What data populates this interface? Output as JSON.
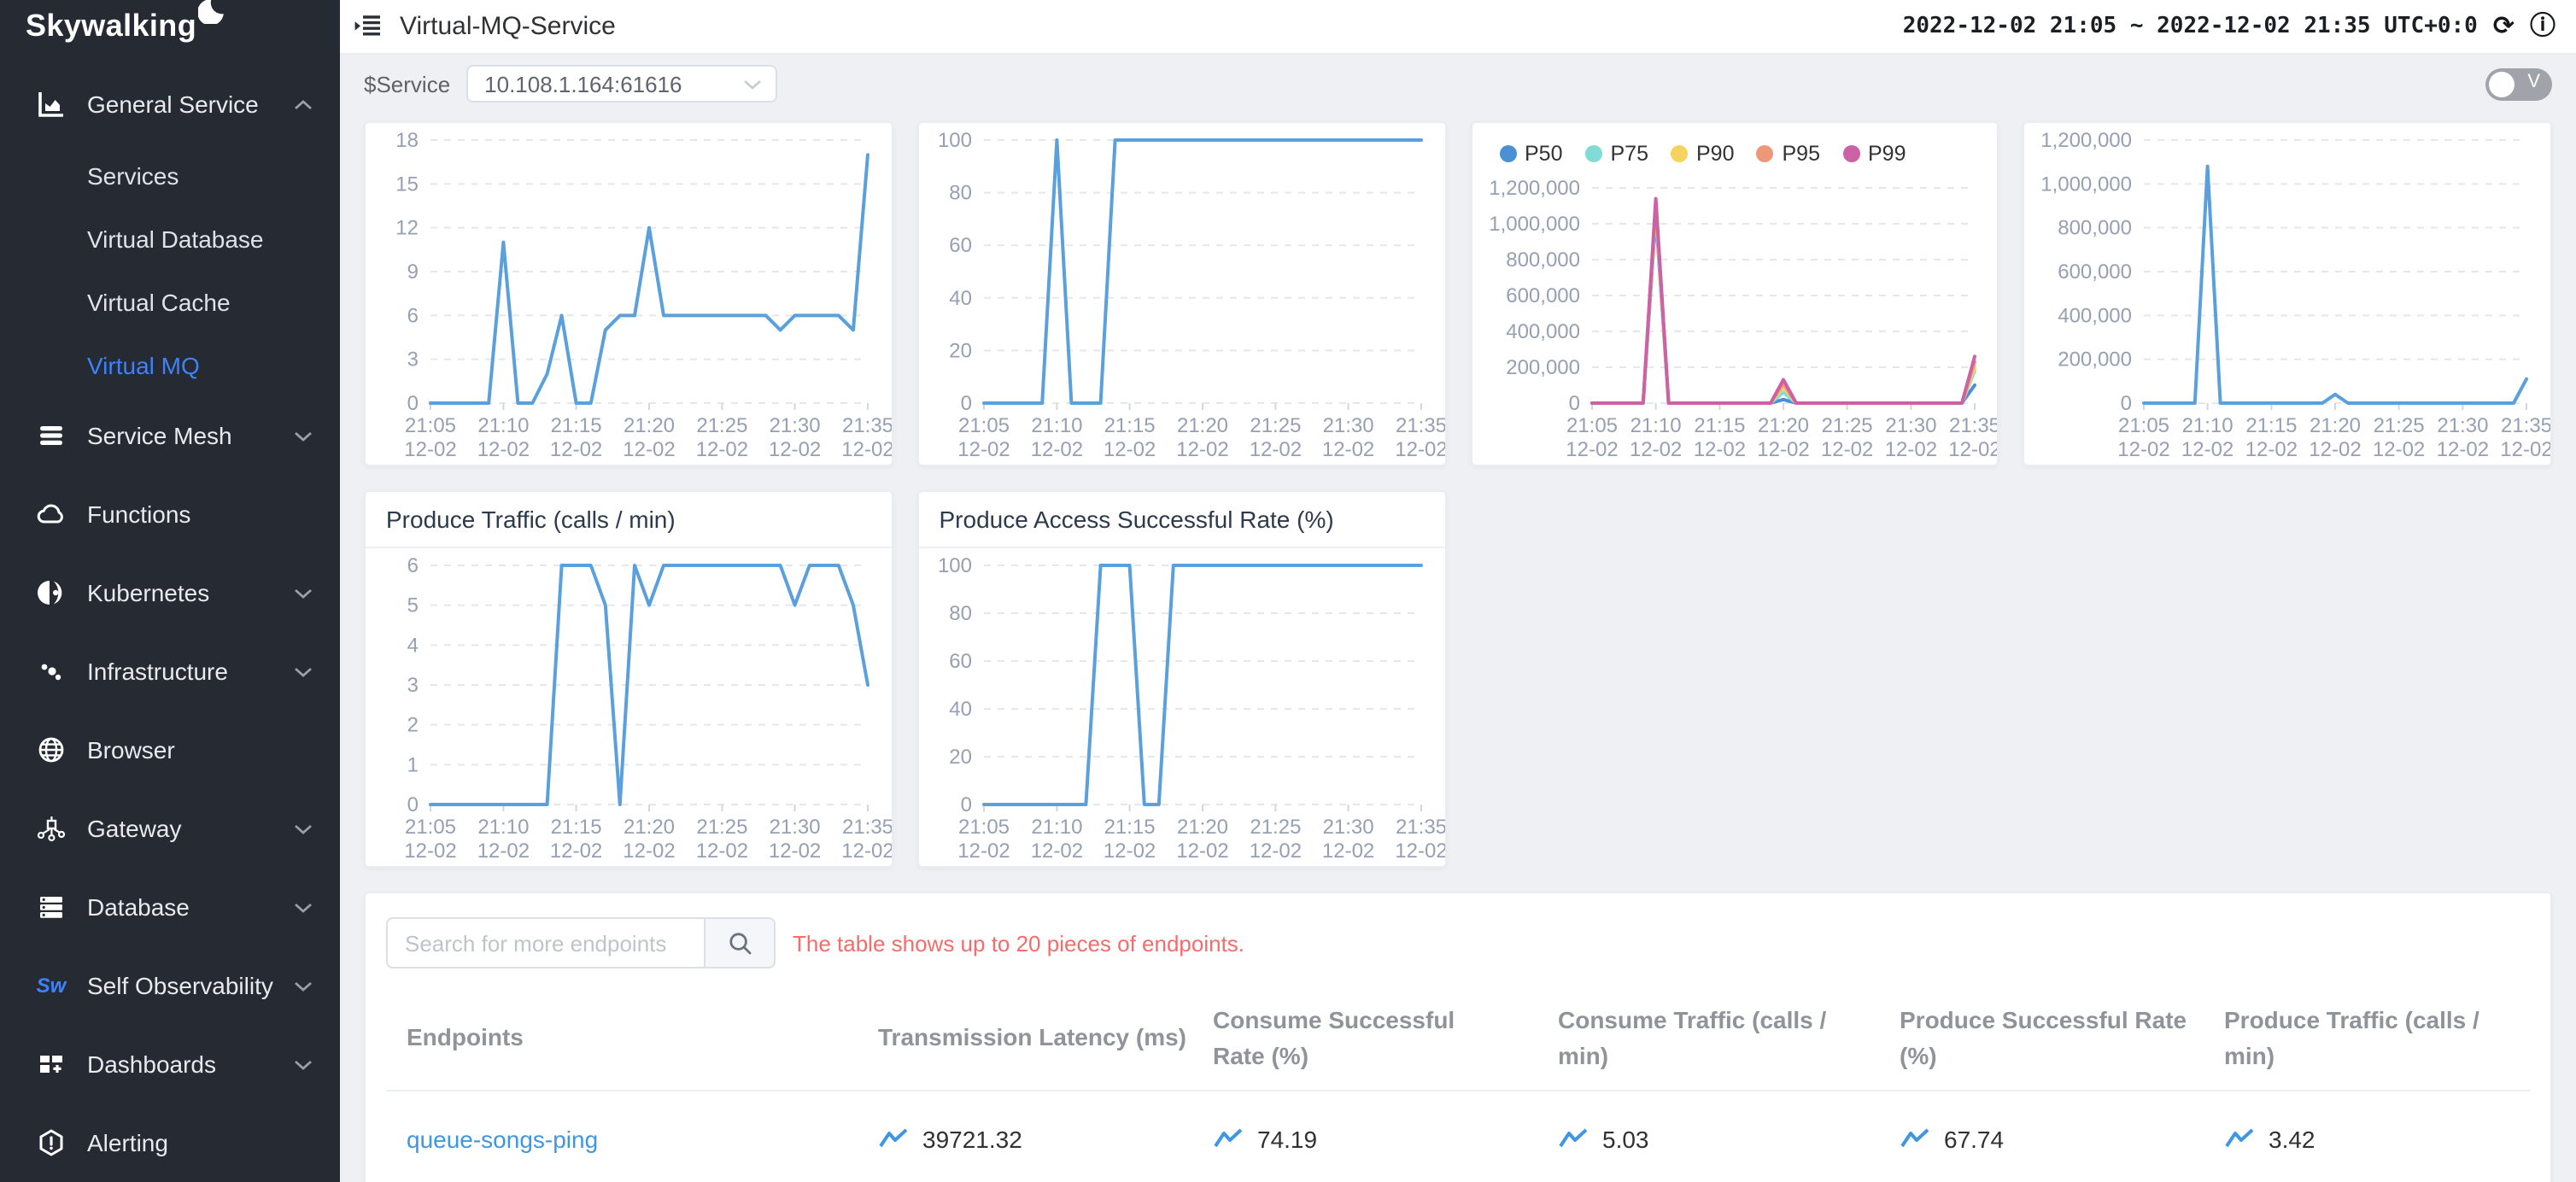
{
  "colors": {
    "sidebar_bg": "#262b33",
    "accent_blue": "#3d82fc",
    "link_blue": "#3f96e3",
    "chart_line": "#5aa0dc",
    "note_red": "#f56c6c"
  },
  "sidebar": {
    "logo_text": "Skywalking",
    "items": [
      {
        "label": "General Service",
        "icon": "chart-icon",
        "chevron": "up",
        "children": [
          {
            "label": "Services",
            "active": false
          },
          {
            "label": "Virtual Database",
            "active": false
          },
          {
            "label": "Virtual Cache",
            "active": false
          },
          {
            "label": "Virtual MQ",
            "active": true
          }
        ]
      },
      {
        "label": "Service Mesh",
        "icon": "layers-icon",
        "chevron": "down"
      },
      {
        "label": "Functions",
        "icon": "cloud-icon",
        "chevron": ""
      },
      {
        "label": "Kubernetes",
        "icon": "kubernetes-icon",
        "chevron": "down"
      },
      {
        "label": "Infrastructure",
        "icon": "dots-icon",
        "chevron": "down"
      },
      {
        "label": "Browser",
        "icon": "globe-icon",
        "chevron": ""
      },
      {
        "label": "Gateway",
        "icon": "gateway-icon",
        "chevron": "down"
      },
      {
        "label": "Database",
        "icon": "database-icon",
        "chevron": "down"
      },
      {
        "label": "Self Observability",
        "icon": "sw-icon",
        "chevron": "down"
      },
      {
        "label": "Dashboards",
        "icon": "grid-icon",
        "chevron": "down"
      },
      {
        "label": "Alerting",
        "icon": "alert-icon",
        "chevron": ""
      }
    ]
  },
  "header": {
    "title": "Virtual-MQ-Service",
    "time_range": "2022-12-02 21:05 ~ 2022-12-02 21:35 UTC+0:0",
    "refresh_icon": "⟳",
    "info_icon": "ⓘ"
  },
  "toolbar": {
    "service_label": "$Service",
    "service_value": "10.108.1.164:61616",
    "toggle_label": "V"
  },
  "table": {
    "search_placeholder": "Search for more endpoints",
    "note": "The table shows up to 20 pieces of endpoints.",
    "columns": [
      "Endpoints",
      "Transmission Latency (ms)",
      "Consume Successful Rate (%)",
      "Consume Traffic (calls / min)",
      "Produce Successful Rate (%)",
      "Produce Traffic (calls / min)"
    ],
    "rows": [
      {
        "endpoint": "queue-songs-ping",
        "transmission_latency": "39721.32",
        "consume_successful_rate": "74.19",
        "consume_traffic": "5.03",
        "produce_successful_rate": "67.74",
        "produce_traffic": "3.42"
      }
    ]
  },
  "chart_data": [
    {
      "type": "line",
      "title": "",
      "x_tick_labels": [
        "21:05",
        "21:10",
        "21:15",
        "21:20",
        "21:25",
        "21:30",
        "21:35"
      ],
      "x_tick_sublabel": "12-02",
      "interval_minutes": 1,
      "ylim": [
        0,
        18
      ],
      "y_ticks": [
        0,
        3,
        6,
        9,
        12,
        15,
        18
      ],
      "y_tick_labels": [
        "0",
        "3",
        "6",
        "9",
        "12",
        "15",
        "18"
      ],
      "grid": true,
      "line_color": "#5aa0dc",
      "values": [
        0,
        0,
        0,
        0,
        0,
        11,
        0,
        0,
        2,
        6,
        0,
        0,
        5,
        6,
        6,
        12,
        6,
        6,
        6,
        6,
        6,
        6,
        6,
        6,
        5,
        6,
        6,
        6,
        6,
        5,
        17
      ]
    },
    {
      "type": "line",
      "title": "",
      "x_tick_labels": [
        "21:05",
        "21:10",
        "21:15",
        "21:20",
        "21:25",
        "21:30",
        "21:35"
      ],
      "x_tick_sublabel": "12-02",
      "interval_minutes": 1,
      "ylim": [
        0,
        100
      ],
      "y_ticks": [
        0,
        20,
        40,
        60,
        80,
        100
      ],
      "y_tick_labels": [
        "0",
        "20",
        "40",
        "60",
        "80",
        "100"
      ],
      "grid": true,
      "line_color": "#5aa0dc",
      "values": [
        0,
        0,
        0,
        0,
        0,
        100,
        0,
        0,
        0,
        100,
        100,
        100,
        100,
        100,
        100,
        100,
        100,
        100,
        100,
        100,
        100,
        100,
        100,
        100,
        100,
        100,
        100,
        100,
        100,
        100,
        100
      ]
    },
    {
      "type": "line",
      "title": "",
      "legend_position": "top",
      "x_tick_labels": [
        "21:05",
        "21:10",
        "21:15",
        "21:20",
        "21:25",
        "21:30",
        "21:35"
      ],
      "x_tick_sublabel": "12-02",
      "interval_minutes": 1,
      "ylim": [
        0,
        1200000
      ],
      "y_ticks": [
        0,
        200000,
        400000,
        600000,
        800000,
        1000000,
        1200000
      ],
      "y_tick_labels": [
        "0",
        "200,000",
        "400,000",
        "600,000",
        "800,000",
        "1,000,000",
        "1,200,000"
      ],
      "grid": true,
      "series": [
        {
          "name": "P50",
          "color": "#4a90d5",
          "values": [
            0,
            0,
            0,
            0,
            0,
            1050000,
            0,
            0,
            0,
            0,
            0,
            0,
            0,
            0,
            0,
            20000,
            0,
            0,
            0,
            0,
            0,
            0,
            0,
            0,
            0,
            0,
            0,
            0,
            0,
            0,
            100000
          ]
        },
        {
          "name": "P75",
          "color": "#81dcd8",
          "values": [
            0,
            0,
            0,
            0,
            0,
            1080000,
            0,
            0,
            0,
            0,
            0,
            0,
            0,
            0,
            0,
            60000,
            0,
            0,
            0,
            0,
            0,
            0,
            0,
            0,
            0,
            0,
            0,
            0,
            0,
            0,
            180000
          ]
        },
        {
          "name": "P90",
          "color": "#f6d25e",
          "values": [
            0,
            0,
            0,
            0,
            0,
            1100000,
            0,
            0,
            0,
            0,
            0,
            0,
            0,
            0,
            0,
            90000,
            0,
            0,
            0,
            0,
            0,
            0,
            0,
            0,
            0,
            0,
            0,
            0,
            0,
            0,
            200000
          ]
        },
        {
          "name": "P95",
          "color": "#ef9779",
          "values": [
            0,
            0,
            0,
            0,
            0,
            1120000,
            0,
            0,
            0,
            0,
            0,
            0,
            0,
            0,
            0,
            110000,
            0,
            0,
            0,
            0,
            0,
            0,
            0,
            0,
            0,
            0,
            0,
            0,
            0,
            0,
            230000
          ]
        },
        {
          "name": "P99",
          "color": "#cd61a5",
          "values": [
            0,
            0,
            0,
            0,
            0,
            1140000,
            0,
            0,
            0,
            0,
            0,
            0,
            0,
            0,
            0,
            130000,
            0,
            0,
            0,
            0,
            0,
            0,
            0,
            0,
            0,
            0,
            0,
            0,
            0,
            0,
            260000
          ]
        }
      ]
    },
    {
      "type": "line",
      "title": "",
      "x_tick_labels": [
        "21:05",
        "21:10",
        "21:15",
        "21:20",
        "21:25",
        "21:30",
        "21:35"
      ],
      "x_tick_sublabel": "12-02",
      "interval_minutes": 1,
      "ylim": [
        0,
        1200000
      ],
      "y_ticks": [
        0,
        200000,
        400000,
        600000,
        800000,
        1000000,
        1200000
      ],
      "y_tick_labels": [
        "0",
        "200,000",
        "400,000",
        "600,000",
        "800,000",
        "1,000,000",
        "1,200,000"
      ],
      "grid": true,
      "line_color": "#5aa0dc",
      "values": [
        0,
        0,
        0,
        0,
        0,
        1080000,
        0,
        0,
        0,
        0,
        0,
        0,
        0,
        0,
        0,
        40000,
        0,
        0,
        0,
        0,
        0,
        0,
        0,
        0,
        0,
        0,
        0,
        0,
        0,
        0,
        110000
      ]
    },
    {
      "type": "line",
      "title": "Produce Traffic (calls / min)",
      "x_tick_labels": [
        "21:05",
        "21:10",
        "21:15",
        "21:20",
        "21:25",
        "21:30",
        "21:35"
      ],
      "x_tick_sublabel": "12-02",
      "interval_minutes": 1,
      "ylim": [
        0,
        6
      ],
      "y_ticks": [
        0,
        1,
        2,
        3,
        4,
        5,
        6
      ],
      "y_tick_labels": [
        "0",
        "1",
        "2",
        "3",
        "4",
        "5",
        "6"
      ],
      "grid": true,
      "line_color": "#5aa0dc",
      "values": [
        0,
        0,
        0,
        0,
        0,
        0,
        0,
        0,
        0,
        6,
        6,
        6,
        5,
        0,
        6,
        5,
        6,
        6,
        6,
        6,
        6,
        6,
        6,
        6,
        6,
        5,
        6,
        6,
        6,
        5,
        3
      ]
    },
    {
      "type": "line",
      "title": "Produce Access Successful Rate (%)",
      "x_tick_labels": [
        "21:05",
        "21:10",
        "21:15",
        "21:20",
        "21:25",
        "21:30",
        "21:35"
      ],
      "x_tick_sublabel": "12-02",
      "interval_minutes": 1,
      "ylim": [
        0,
        100
      ],
      "y_ticks": [
        0,
        20,
        40,
        60,
        80,
        100
      ],
      "y_tick_labels": [
        "0",
        "20",
        "40",
        "60",
        "80",
        "100"
      ],
      "grid": true,
      "line_color": "#5aa0dc",
      "values": [
        0,
        0,
        0,
        0,
        0,
        0,
        0,
        0,
        100,
        100,
        100,
        0,
        0,
        100,
        100,
        100,
        100,
        100,
        100,
        100,
        100,
        100,
        100,
        100,
        100,
        100,
        100,
        100,
        100,
        100,
        100
      ]
    }
  ]
}
